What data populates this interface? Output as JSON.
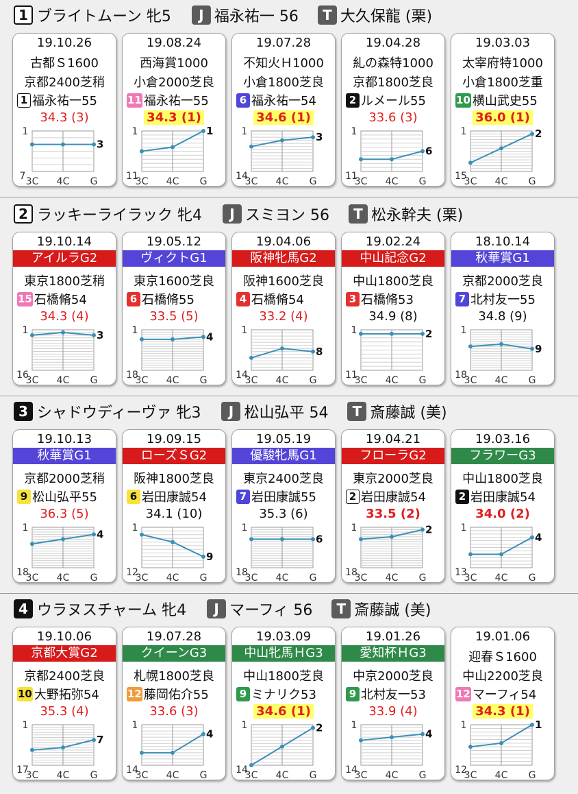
{
  "horses": [
    {
      "num": "1",
      "horse": "ブライトムーン 牝5",
      "jockey_badge": "J",
      "jockey": "福永祐一 56",
      "trainer_badge": "T",
      "trainer": "大久保龍 (栗)",
      "races": [
        {
          "date": "19.10.26",
          "race": "古都Ｓ1600",
          "course": "京都2400芝稍",
          "post": "1",
          "post_style": "outline",
          "jockey": "福永祐一55",
          "time": "34.3 (3)",
          "time_style": "red",
          "low": "7",
          "positions": [
            3,
            3,
            3
          ],
          "result": "3",
          "pos_labels": [
            "3C",
            "4C",
            "G"
          ]
        },
        {
          "date": "19.08.24",
          "race": "西海賞1000",
          "course": "小倉2000芝良",
          "post": "11",
          "post_style": "pink",
          "jockey": "福永祐一55",
          "time": "34.3 (1)",
          "time_style": "hl",
          "low": "11",
          "positions": [
            6,
            5,
            1
          ],
          "result": "1",
          "pos_labels": [
            "3C",
            "4C",
            "G"
          ]
        },
        {
          "date": "19.07.28",
          "race": "不知火Ｈ1000",
          "course": "小倉1800芝良",
          "post": "6",
          "post_style": "blue",
          "jockey": "福永祐一54",
          "time": "34.6 (1)",
          "time_style": "hl",
          "low": "14",
          "positions": [
            6,
            4,
            3
          ],
          "result": "3",
          "pos_labels": [
            "3C",
            "4C",
            "G"
          ]
        },
        {
          "date": "19.04.28",
          "race": "糺の森特1000",
          "course": "京都1800芝良",
          "post": "2",
          "post_style": "black",
          "jockey": "ルメール55",
          "time": "33.6 (3)",
          "time_style": "red",
          "low": "11",
          "positions": [
            8,
            8,
            6
          ],
          "result": "6",
          "pos_labels": [
            "3C",
            "4C",
            "G"
          ]
        },
        {
          "date": "19.03.03",
          "race": "太宰府特1000",
          "course": "小倉1800芝重",
          "post": "10",
          "post_style": "green",
          "jockey": "横山武史55",
          "time": "36.0 (1)",
          "time_style": "hl",
          "low": "15",
          "positions": [
            12,
            7,
            2
          ],
          "result": "2",
          "pos_labels": [
            "3C",
            "4C",
            "G"
          ]
        }
      ]
    },
    {
      "num": "2",
      "horse": "ラッキーライラック 牝4",
      "jockey_badge": "J",
      "jockey": "スミヨン 56",
      "trainer_badge": "T",
      "trainer": "松永幹夫 (栗)",
      "races": [
        {
          "date": "19.10.14",
          "band": "アイルラG2",
          "band_color": "#d71a1a",
          "course": "東京1800芝稍",
          "post": "15",
          "post_style": "pink",
          "jockey": "石橋脩54",
          "time": "34.3 (4)",
          "time_style": "red",
          "low": "16",
          "positions": [
            3,
            2,
            3
          ],
          "result": "3",
          "pos_labels": [
            "3C",
            "4C",
            "G"
          ]
        },
        {
          "date": "19.05.12",
          "band": "ヴィクトG1",
          "band_color": "#5444d8",
          "course": "東京1600芝良",
          "post": "6",
          "post_style": "red",
          "jockey": "石橋脩55",
          "time": "33.5 (5)",
          "time_style": "red",
          "low": "18",
          "positions": [
            5,
            5,
            4
          ],
          "result": "4",
          "pos_labels": [
            "3C",
            "4C",
            "G"
          ]
        },
        {
          "date": "19.04.06",
          "band": "阪神牝馬G2",
          "band_color": "#d71a1a",
          "course": "阪神1600芝良",
          "post": "4",
          "post_style": "red",
          "jockey": "石橋脩54",
          "time": "33.2 (4)",
          "time_style": "red",
          "low": "14",
          "positions": [
            10,
            7,
            8
          ],
          "result": "8",
          "pos_labels": [
            "3C",
            "4C",
            "G"
          ]
        },
        {
          "date": "19.02.24",
          "band": "中山記念G2",
          "band_color": "#d71a1a",
          "course": "中山1800芝良",
          "post": "3",
          "post_style": "red",
          "jockey": "石橋脩53",
          "time": "34.9 (8)",
          "time_style": "plain",
          "low": "11",
          "positions": [
            2,
            2,
            2
          ],
          "result": "2",
          "pos_labels": [
            "3C",
            "4C",
            "G"
          ]
        },
        {
          "date": "18.10.14",
          "band": "秋華賞G1",
          "band_color": "#5444d8",
          "course": "京都2000芝良",
          "post": "7",
          "post_style": "blue",
          "jockey": "北村友一55",
          "time": "34.8 (9)",
          "time_style": "plain",
          "low": "18",
          "positions": [
            8,
            7,
            9
          ],
          "result": "9",
          "pos_labels": [
            "3C",
            "4C",
            "G"
          ]
        }
      ]
    },
    {
      "num": "3",
      "horse": "シャドウディーヴァ 牝3",
      "jockey_badge": "J",
      "jockey": "松山弘平 54",
      "trainer_badge": "T",
      "trainer": "斎藤誠 (美)",
      "races": [
        {
          "date": "19.10.13",
          "band": "秋華賞G1",
          "band_color": "#5444d8",
          "course": "京都2000芝稍",
          "post": "9",
          "post_style": "yellow",
          "jockey": "松山弘平55",
          "time": "36.3 (5)",
          "time_style": "red",
          "low": "18",
          "positions": [
            8,
            6,
            4
          ],
          "result": "4",
          "pos_labels": [
            "3C",
            "4C",
            "G"
          ]
        },
        {
          "date": "19.09.15",
          "band": "ローズＳG2",
          "band_color": "#d71a1a",
          "course": "阪神1800芝良",
          "post": "6",
          "post_style": "yellow",
          "jockey": "岩田康誠54",
          "time": "34.1 (10)",
          "time_style": "plain",
          "low": "12",
          "positions": [
            3,
            5,
            9
          ],
          "result": "9",
          "pos_labels": [
            "3C",
            "4C",
            "G"
          ]
        },
        {
          "date": "19.05.19",
          "band": "優駿牝馬G1",
          "band_color": "#5444d8",
          "course": "東京2400芝良",
          "post": "7",
          "post_style": "blue",
          "jockey": "岩田康誠55",
          "time": "35.3 (6)",
          "time_style": "plain",
          "low": "18",
          "positions": [
            6,
            6,
            6
          ],
          "result": "6",
          "pos_labels": [
            "3C",
            "4C",
            "G"
          ]
        },
        {
          "date": "19.04.21",
          "band": "フローラG2",
          "band_color": "#d71a1a",
          "course": "東京2000芝良",
          "post": "2",
          "post_style": "outline",
          "jockey": "岩田康誠54",
          "time": "33.5 (2)",
          "time_style": "redbold",
          "low": "18",
          "positions": [
            6,
            5,
            2
          ],
          "result": "2",
          "pos_labels": [
            "3C",
            "4C",
            "G"
          ]
        },
        {
          "date": "19.03.16",
          "band": "フラワーG3",
          "band_color": "#2f8a4a",
          "course": "中山1800芝良",
          "post": "2",
          "post_style": "black",
          "jockey": "岩田康誠54",
          "time": "34.0 (2)",
          "time_style": "redbold",
          "low": "13",
          "positions": [
            9,
            9,
            4
          ],
          "result": "4",
          "pos_labels": [
            "3C",
            "4C",
            "G"
          ]
        }
      ]
    },
    {
      "num": "4",
      "horse": "ウラヌスチャーム 牝4",
      "jockey_badge": "J",
      "jockey": "マーフィ 56",
      "trainer_badge": "T",
      "trainer": "斎藤誠 (美)",
      "races": [
        {
          "date": "19.10.06",
          "band": "京都大賞G2",
          "band_color": "#d71a1a",
          "course": "京都2400芝良",
          "post": "10",
          "post_style": "yellow",
          "jockey": "大野拓弥54",
          "time": "35.3 (4)",
          "time_style": "red",
          "low": "17",
          "positions": [
            11,
            10,
            7
          ],
          "result": "7",
          "pos_labels": [
            "3C",
            "4C",
            "G"
          ]
        },
        {
          "date": "19.07.28",
          "band": "クイーンG3",
          "band_color": "#2f8a4a",
          "course": "札幌1800芝良",
          "post": "12",
          "post_style": "orange",
          "jockey": "藤岡佑介55",
          "time": "33.6 (3)",
          "time_style": "red",
          "low": "14",
          "positions": [
            10,
            10,
            4
          ],
          "result": "4",
          "pos_labels": [
            "3C",
            "4C",
            "G"
          ]
        },
        {
          "date": "19.03.09",
          "band": "中山牝馬ＨG3",
          "band_color": "#2f8a4a",
          "course": "中山1800芝良",
          "post": "9",
          "post_style": "green",
          "jockey": "ミナリク53",
          "time": "34.6 (1)",
          "time_style": "hl",
          "low": "14",
          "positions": [
            14,
            8,
            2
          ],
          "result": "2",
          "pos_labels": [
            "3C",
            "4C",
            "G"
          ]
        },
        {
          "date": "19.01.26",
          "band": "愛知杯ＨG3",
          "band_color": "#2f8a4a",
          "course": "中京2000芝良",
          "post": "9",
          "post_style": "green",
          "jockey": "北村友一53",
          "time": "33.9 (4)",
          "time_style": "red",
          "low": "14",
          "positions": [
            6,
            5,
            4
          ],
          "result": "4",
          "pos_labels": [
            "3C",
            "4C",
            "G"
          ]
        },
        {
          "date": "19.01.06",
          "race": "迎春Ｓ1600",
          "course": "中山2200芝良",
          "post": "12",
          "post_style": "pink",
          "jockey": "マーフィ54",
          "time": "34.3 (1)",
          "time_style": "hl",
          "low": "12",
          "positions": [
            7,
            6,
            1
          ],
          "result": "1",
          "pos_labels": [
            "3C",
            "4C",
            "G"
          ]
        }
      ]
    }
  ],
  "axis_top": "1"
}
